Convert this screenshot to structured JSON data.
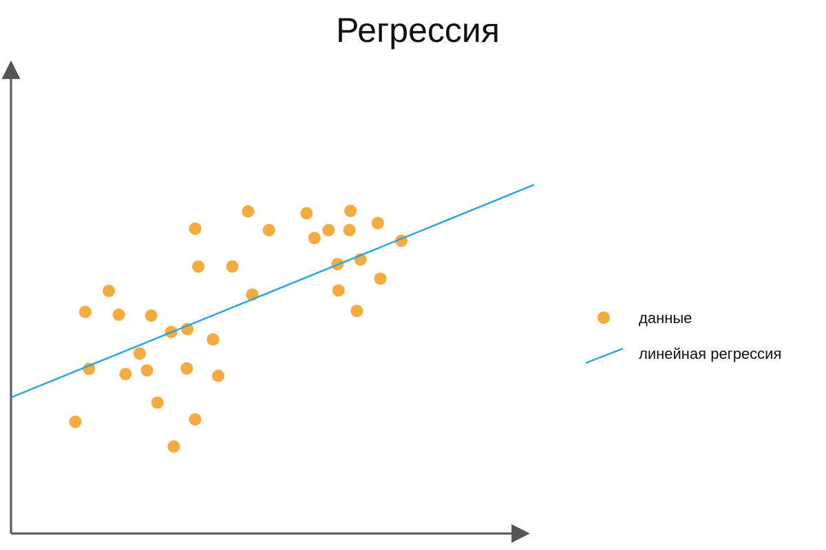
{
  "colors": {
    "points": "#F5AB3F",
    "regression_line": "#2AA6DF",
    "axes": "#555555",
    "text": "#111111"
  },
  "chart_data": {
    "type": "scatter",
    "title": "Регрессия",
    "xlabel": "",
    "ylabel": "",
    "xlim": [
      0,
      100
    ],
    "ylim": [
      0,
      100
    ],
    "grid": false,
    "axis_ticks": false,
    "legend_placement": "right",
    "legend": [
      {
        "label": "данные",
        "marker": "point",
        "color": "#F5AB3F"
      },
      {
        "label": "линейная регрессия",
        "marker": "line",
        "color": "#2AA6DF"
      }
    ],
    "series": [
      {
        "name": "данные",
        "kind": "points",
        "points": [
          [
            12.3,
            23.9
          ],
          [
            14.2,
            47.4
          ],
          [
            14.9,
            35.2
          ],
          [
            18.7,
            51.9
          ],
          [
            20.6,
            46.8
          ],
          [
            21.9,
            34.1
          ],
          [
            24.6,
            38.5
          ],
          [
            26.0,
            34.9
          ],
          [
            26.8,
            46.6
          ],
          [
            28.0,
            28.0
          ],
          [
            30.6,
            43.1
          ],
          [
            31.1,
            18.6
          ],
          [
            33.6,
            35.3
          ],
          [
            33.7,
            43.7
          ],
          [
            35.2,
            24.4
          ],
          [
            35.2,
            65.2
          ],
          [
            35.8,
            57.1
          ],
          [
            38.6,
            41.5
          ],
          [
            39.6,
            33.7
          ],
          [
            42.3,
            57.1
          ],
          [
            46.1,
            51.1
          ],
          [
            45.3,
            68.9
          ],
          [
            49.3,
            64.9
          ],
          [
            56.5,
            68.5
          ],
          [
            58.0,
            63.2
          ],
          [
            60.7,
            64.9
          ],
          [
            62.4,
            57.6
          ],
          [
            62.6,
            52.0
          ],
          [
            64.9,
            69.0
          ],
          [
            64.7,
            64.9
          ],
          [
            66.1,
            47.6
          ],
          [
            66.8,
            58.6
          ],
          [
            70.1,
            66.4
          ],
          [
            70.6,
            54.5
          ],
          [
            74.6,
            62.6
          ]
        ]
      },
      {
        "name": "линейная регрессия",
        "kind": "line",
        "points": [
          [
            0,
            29.1
          ],
          [
            100,
            74.6
          ]
        ]
      }
    ]
  }
}
